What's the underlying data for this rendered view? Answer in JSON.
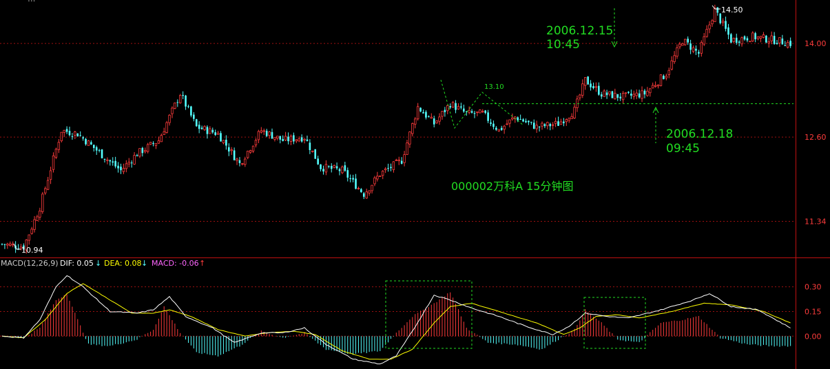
{
  "header_title": "...",
  "annotations": {
    "title": "000002万科A 15分钟图",
    "time1_date": "2006.12.15",
    "time1_time": "10:45",
    "time2_date": "2006.12.18",
    "time2_time": "09:45",
    "level_label": "13.10",
    "high_label": "14.50",
    "low_label": "10.94"
  },
  "macd_legend": {
    "name": "MACD(12,26,9)",
    "dif_label": "DIF: 0.05",
    "dea_label": "DEA: 0.08",
    "macd_label": "MACD: -0.06",
    "down_arrow": "↓",
    "up_arrow": "↑"
  },
  "colors": {
    "up": "#ff3c3c",
    "down": "#54ffff",
    "dif": "#ffffff",
    "dea": "#ffff00",
    "grid": "#a01010",
    "annotation": "#22dd22",
    "axis_text": "#ff3c3c"
  },
  "chart_data": [
    {
      "type": "candlestick",
      "title": "000002万科A 15分钟图",
      "y_ticks": [
        "14.00",
        "12.60",
        "11.34"
      ],
      "tick_values": [
        14.0,
        12.6,
        11.34
      ],
      "ylim": [
        10.8,
        14.65
      ],
      "grid": true,
      "reference_level": 13.1,
      "high": 14.5,
      "low": 10.94,
      "waypoints": [
        [
          0,
          11.0
        ],
        [
          8,
          10.96
        ],
        [
          14,
          11.55
        ],
        [
          22,
          12.7
        ],
        [
          28,
          12.65
        ],
        [
          38,
          12.3
        ],
        [
          44,
          12.1
        ],
        [
          50,
          12.35
        ],
        [
          58,
          12.55
        ],
        [
          66,
          13.25
        ],
        [
          72,
          12.75
        ],
        [
          80,
          12.65
        ],
        [
          88,
          12.2
        ],
        [
          96,
          12.7
        ],
        [
          104,
          12.55
        ],
        [
          112,
          12.6
        ],
        [
          118,
          12.15
        ],
        [
          126,
          12.1
        ],
        [
          134,
          11.75
        ],
        [
          140,
          12.05
        ],
        [
          148,
          12.25
        ],
        [
          154,
          13.05
        ],
        [
          160,
          12.8
        ],
        [
          166,
          13.1
        ],
        [
          172,
          12.95
        ],
        [
          178,
          12.95
        ],
        [
          184,
          12.7
        ],
        [
          190,
          12.9
        ],
        [
          198,
          12.75
        ],
        [
          206,
          12.8
        ],
        [
          212,
          13.0
        ],
        [
          216,
          13.45
        ],
        [
          222,
          13.25
        ],
        [
          230,
          13.2
        ],
        [
          238,
          13.25
        ],
        [
          246,
          13.55
        ],
        [
          252,
          14.05
        ],
        [
          258,
          13.85
        ],
        [
          264,
          14.5
        ],
        [
          270,
          14.05
        ],
        [
          278,
          14.1
        ],
        [
          286,
          14.05
        ],
        [
          292,
          14.0
        ]
      ]
    },
    {
      "type": "macd",
      "series": [
        "DIF",
        "DEA",
        "MACD"
      ],
      "y_ticks": [
        "0.30",
        "0.15",
        "0.00"
      ],
      "tick_values": [
        0.3,
        0.15,
        0.0
      ],
      "ylim": [
        -0.2,
        0.42
      ],
      "grid": true,
      "dif_waypoints": [
        [
          0,
          0.0
        ],
        [
          8,
          -0.01
        ],
        [
          14,
          0.1
        ],
        [
          20,
          0.3
        ],
        [
          24,
          0.37
        ],
        [
          30,
          0.3
        ],
        [
          40,
          0.15
        ],
        [
          50,
          0.14
        ],
        [
          56,
          0.16
        ],
        [
          62,
          0.24
        ],
        [
          68,
          0.12
        ],
        [
          78,
          0.05
        ],
        [
          86,
          -0.04
        ],
        [
          96,
          0.02
        ],
        [
          104,
          0.02
        ],
        [
          112,
          0.05
        ],
        [
          120,
          -0.05
        ],
        [
          130,
          -0.14
        ],
        [
          140,
          -0.17
        ],
        [
          146,
          -0.12
        ],
        [
          152,
          0.03
        ],
        [
          160,
          0.25
        ],
        [
          166,
          0.22
        ],
        [
          174,
          0.17
        ],
        [
          184,
          0.12
        ],
        [
          194,
          0.06
        ],
        [
          204,
          0.01
        ],
        [
          210,
          0.06
        ],
        [
          216,
          0.14
        ],
        [
          224,
          0.12
        ],
        [
          232,
          0.11
        ],
        [
          244,
          0.16
        ],
        [
          256,
          0.22
        ],
        [
          262,
          0.26
        ],
        [
          270,
          0.18
        ],
        [
          280,
          0.16
        ],
        [
          292,
          0.05
        ]
      ],
      "dea_waypoints": [
        [
          0,
          0.0
        ],
        [
          8,
          -0.01
        ],
        [
          16,
          0.1
        ],
        [
          24,
          0.26
        ],
        [
          30,
          0.32
        ],
        [
          38,
          0.24
        ],
        [
          48,
          0.14
        ],
        [
          56,
          0.14
        ],
        [
          62,
          0.16
        ],
        [
          70,
          0.12
        ],
        [
          80,
          0.04
        ],
        [
          90,
          0.0
        ],
        [
          98,
          0.02
        ],
        [
          108,
          0.03
        ],
        [
          116,
          0.01
        ],
        [
          126,
          -0.09
        ],
        [
          136,
          -0.14
        ],
        [
          144,
          -0.14
        ],
        [
          152,
          -0.08
        ],
        [
          160,
          0.08
        ],
        [
          166,
          0.18
        ],
        [
          174,
          0.2
        ],
        [
          186,
          0.14
        ],
        [
          198,
          0.08
        ],
        [
          208,
          0.01
        ],
        [
          214,
          0.05
        ],
        [
          220,
          0.12
        ],
        [
          228,
          0.13
        ],
        [
          236,
          0.11
        ],
        [
          248,
          0.15
        ],
        [
          260,
          0.2
        ],
        [
          270,
          0.19
        ],
        [
          282,
          0.15
        ],
        [
          292,
          0.08
        ]
      ],
      "macd_waypoints": [
        [
          0,
          0.0
        ],
        [
          8,
          -0.01
        ],
        [
          14,
          0.05
        ],
        [
          20,
          0.22
        ],
        [
          24,
          0.26
        ],
        [
          28,
          0.1
        ],
        [
          32,
          -0.05
        ],
        [
          40,
          -0.06
        ],
        [
          50,
          -0.02
        ],
        [
          56,
          0.04
        ],
        [
          60,
          0.18
        ],
        [
          66,
          0.02
        ],
        [
          72,
          -0.1
        ],
        [
          80,
          -0.12
        ],
        [
          88,
          -0.06
        ],
        [
          96,
          0.03
        ],
        [
          104,
          -0.01
        ],
        [
          112,
          0.02
        ],
        [
          120,
          -0.08
        ],
        [
          130,
          -0.11
        ],
        [
          140,
          -0.09
        ],
        [
          146,
          0.02
        ],
        [
          152,
          0.12
        ],
        [
          160,
          0.2
        ],
        [
          166,
          0.27
        ],
        [
          172,
          0.05
        ],
        [
          180,
          -0.04
        ],
        [
          190,
          -0.05
        ],
        [
          200,
          -0.08
        ],
        [
          206,
          -0.02
        ],
        [
          212,
          0.04
        ],
        [
          216,
          0.16
        ],
        [
          222,
          0.08
        ],
        [
          228,
          -0.02
        ],
        [
          236,
          -0.04
        ],
        [
          244,
          0.08
        ],
        [
          252,
          0.1
        ],
        [
          258,
          0.12
        ],
        [
          266,
          -0.01
        ],
        [
          276,
          -0.05
        ],
        [
          284,
          -0.06
        ],
        [
          292,
          -0.06
        ]
      ]
    }
  ]
}
